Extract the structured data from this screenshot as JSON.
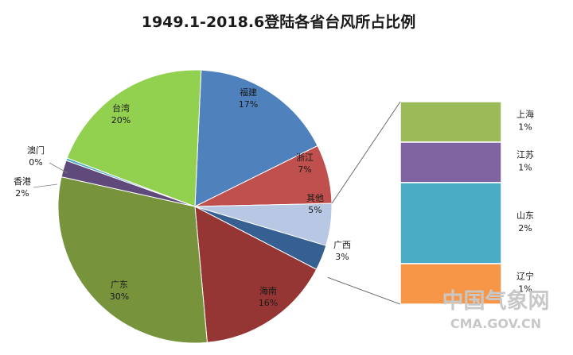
{
  "chart_data": {
    "type": "pie",
    "title": "1949.1-2018.6登陆各省台风所占比例",
    "slices": [
      {
        "name": "福建",
        "value": 17,
        "label": "17%",
        "color": "#4f81bd"
      },
      {
        "name": "浙江",
        "value": 7,
        "label": "7%",
        "color": "#c0504d"
      },
      {
        "name": "其他",
        "value": 5,
        "label": "5%",
        "color": "#b8c7e3"
      },
      {
        "name": "广西",
        "value": 3,
        "label": "3%",
        "color": "#376092"
      },
      {
        "name": "海南",
        "value": 16,
        "label": "16%",
        "color": "#963634"
      },
      {
        "name": "广东",
        "value": 30,
        "label": "30%",
        "color": "#77933c"
      },
      {
        "name": "香港",
        "value": 2,
        "label": "2%",
        "color": "#604a7b"
      },
      {
        "name": "澳门",
        "value": 0.3,
        "label": "0%",
        "color": "#4bacc6"
      },
      {
        "name": "台湾",
        "value": 20,
        "label": "20%",
        "color": "#92d050"
      }
    ],
    "breakdown": {
      "of": "其他",
      "type": "stacked-bar",
      "items": [
        {
          "name": "上海",
          "value": 1,
          "label": "1%",
          "color": "#9bbb59"
        },
        {
          "name": "江苏",
          "value": 1,
          "label": "1%",
          "color": "#8064a2"
        },
        {
          "name": "山东",
          "value": 2,
          "label": "2%",
          "color": "#4bacc6"
        },
        {
          "name": "辽宁",
          "value": 1,
          "label": "1%",
          "color": "#f79646"
        }
      ]
    }
  },
  "watermark": {
    "line1": "中国气象网",
    "line2": "CMA.GOV.CN"
  }
}
